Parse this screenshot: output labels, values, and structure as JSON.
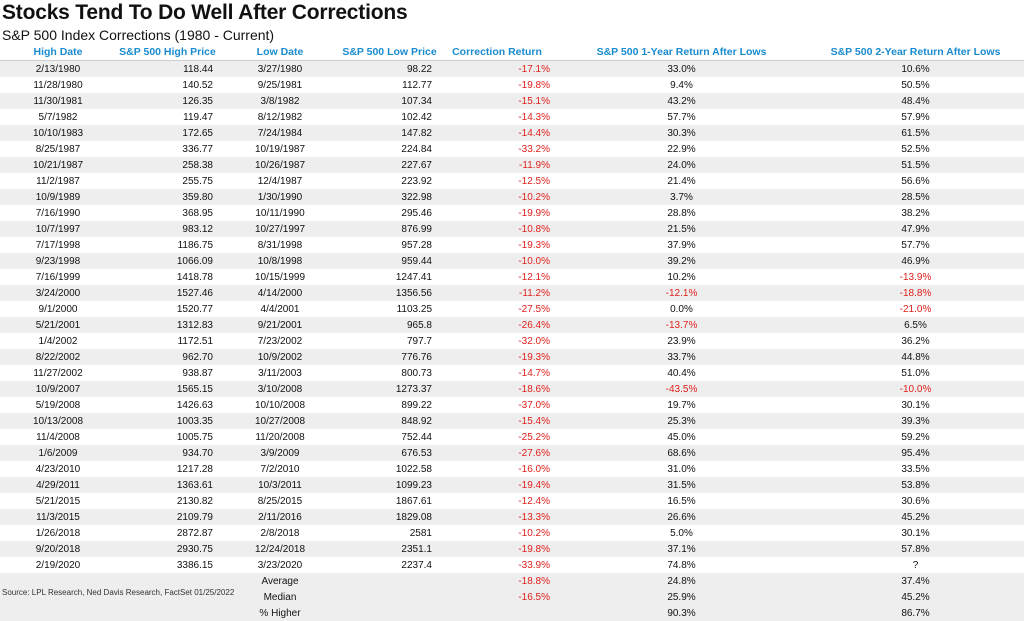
{
  "title": "Stocks Tend To Do Well After Corrections",
  "subtitle": "S&P 500 Index Corrections (1980 - Current)",
  "headers": [
    "High Date",
    "S&P 500 High Price",
    "Low Date",
    "S&P 500 Low Price",
    "Correction Return",
    "S&P 500 1-Year Return After Lows",
    "S&P 500 2-Year Return After Lows"
  ],
  "rows": [
    [
      "2/13/1980",
      "118.44",
      "3/27/1980",
      "98.22",
      "-17.1%",
      "33.0%",
      "10.6%"
    ],
    [
      "11/28/1980",
      "140.52",
      "9/25/1981",
      "112.77",
      "-19.8%",
      "9.4%",
      "50.5%"
    ],
    [
      "11/30/1981",
      "126.35",
      "3/8/1982",
      "107.34",
      "-15.1%",
      "43.2%",
      "48.4%"
    ],
    [
      "5/7/1982",
      "119.47",
      "8/12/1982",
      "102.42",
      "-14.3%",
      "57.7%",
      "57.9%"
    ],
    [
      "10/10/1983",
      "172.65",
      "7/24/1984",
      "147.82",
      "-14.4%",
      "30.3%",
      "61.5%"
    ],
    [
      "8/25/1987",
      "336.77",
      "10/19/1987",
      "224.84",
      "-33.2%",
      "22.9%",
      "52.5%"
    ],
    [
      "10/21/1987",
      "258.38",
      "10/26/1987",
      "227.67",
      "-11.9%",
      "24.0%",
      "51.5%"
    ],
    [
      "11/2/1987",
      "255.75",
      "12/4/1987",
      "223.92",
      "-12.5%",
      "21.4%",
      "56.6%"
    ],
    [
      "10/9/1989",
      "359.80",
      "1/30/1990",
      "322.98",
      "-10.2%",
      "3.7%",
      "28.5%"
    ],
    [
      "7/16/1990",
      "368.95",
      "10/11/1990",
      "295.46",
      "-19.9%",
      "28.8%",
      "38.2%"
    ],
    [
      "10/7/1997",
      "983.12",
      "10/27/1997",
      "876.99",
      "-10.8%",
      "21.5%",
      "47.9%"
    ],
    [
      "7/17/1998",
      "1186.75",
      "8/31/1998",
      "957.28",
      "-19.3%",
      "37.9%",
      "57.7%"
    ],
    [
      "9/23/1998",
      "1066.09",
      "10/8/1998",
      "959.44",
      "-10.0%",
      "39.2%",
      "46.9%"
    ],
    [
      "7/16/1999",
      "1418.78",
      "10/15/1999",
      "1247.41",
      "-12.1%",
      "10.2%",
      "-13.9%"
    ],
    [
      "3/24/2000",
      "1527.46",
      "4/14/2000",
      "1356.56",
      "-11.2%",
      "-12.1%",
      "-18.8%"
    ],
    [
      "9/1/2000",
      "1520.77",
      "4/4/2001",
      "1103.25",
      "-27.5%",
      "0.0%",
      "-21.0%"
    ],
    [
      "5/21/2001",
      "1312.83",
      "9/21/2001",
      "965.8",
      "-26.4%",
      "-13.7%",
      "6.5%"
    ],
    [
      "1/4/2002",
      "1172.51",
      "7/23/2002",
      "797.7",
      "-32.0%",
      "23.9%",
      "36.2%"
    ],
    [
      "8/22/2002",
      "962.70",
      "10/9/2002",
      "776.76",
      "-19.3%",
      "33.7%",
      "44.8%"
    ],
    [
      "11/27/2002",
      "938.87",
      "3/11/2003",
      "800.73",
      "-14.7%",
      "40.4%",
      "51.0%"
    ],
    [
      "10/9/2007",
      "1565.15",
      "3/10/2008",
      "1273.37",
      "-18.6%",
      "-43.5%",
      "-10.0%"
    ],
    [
      "5/19/2008",
      "1426.63",
      "10/10/2008",
      "899.22",
      "-37.0%",
      "19.7%",
      "30.1%"
    ],
    [
      "10/13/2008",
      "1003.35",
      "10/27/2008",
      "848.92",
      "-15.4%",
      "25.3%",
      "39.3%"
    ],
    [
      "11/4/2008",
      "1005.75",
      "11/20/2008",
      "752.44",
      "-25.2%",
      "45.0%",
      "59.2%"
    ],
    [
      "1/6/2009",
      "934.70",
      "3/9/2009",
      "676.53",
      "-27.6%",
      "68.6%",
      "95.4%"
    ],
    [
      "4/23/2010",
      "1217.28",
      "7/2/2010",
      "1022.58",
      "-16.0%",
      "31.0%",
      "33.5%"
    ],
    [
      "4/29/2011",
      "1363.61",
      "10/3/2011",
      "1099.23",
      "-19.4%",
      "31.5%",
      "53.8%"
    ],
    [
      "5/21/2015",
      "2130.82",
      "8/25/2015",
      "1867.61",
      "-12.4%",
      "16.5%",
      "30.6%"
    ],
    [
      "11/3/2015",
      "2109.79",
      "2/11/2016",
      "1829.08",
      "-13.3%",
      "26.6%",
      "45.2%"
    ],
    [
      "1/26/2018",
      "2872.87",
      "2/8/2018",
      "2581",
      "-10.2%",
      "5.0%",
      "30.1%"
    ],
    [
      "9/20/2018",
      "2930.75",
      "12/24/2018",
      "2351.1",
      "-19.8%",
      "37.1%",
      "57.8%"
    ],
    [
      "2/19/2020",
      "3386.15",
      "3/23/2020",
      "2237.4",
      "-33.9%",
      "74.8%",
      "?"
    ]
  ],
  "summary": [
    {
      "label": "Average",
      "correction": "-18.8%",
      "one_year": "24.8%",
      "two_year": "37.4%"
    },
    {
      "label": "Median",
      "correction": "-16.5%",
      "one_year": "25.9%",
      "two_year": "45.2%"
    },
    {
      "label": "% Higher",
      "correction": "",
      "one_year": "90.3%",
      "two_year": "86.7%"
    }
  ],
  "source": "Source: LPL Research, Ned Davis Research, FactSet 01/25/2022",
  "colors": {
    "header": "#1a8ccf",
    "negative": "#e0201b",
    "stripe": "#eeeeee"
  }
}
